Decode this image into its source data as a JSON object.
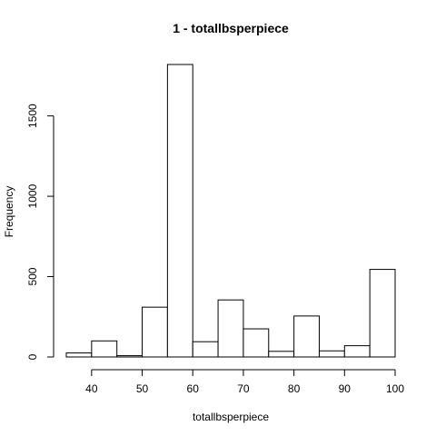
{
  "chart_data": {
    "type": "bar",
    "title": "1 - totallbsperpiece",
    "xlabel": "totallbsperpiece",
    "ylabel": "Frequency",
    "bins": [
      {
        "from": 35,
        "to": 40,
        "count": 25
      },
      {
        "from": 40,
        "to": 45,
        "count": 100
      },
      {
        "from": 45,
        "to": 50,
        "count": 8
      },
      {
        "from": 50,
        "to": 55,
        "count": 310
      },
      {
        "from": 55,
        "to": 60,
        "count": 1820
      },
      {
        "from": 60,
        "to": 65,
        "count": 95
      },
      {
        "from": 65,
        "to": 70,
        "count": 355
      },
      {
        "from": 70,
        "to": 75,
        "count": 175
      },
      {
        "from": 75,
        "to": 80,
        "count": 35
      },
      {
        "from": 80,
        "to": 85,
        "count": 255
      },
      {
        "from": 85,
        "to": 90,
        "count": 38
      },
      {
        "from": 90,
        "to": 95,
        "count": 70
      },
      {
        "from": 95,
        "to": 100,
        "count": 545
      }
    ],
    "xlim": [
      35,
      100
    ],
    "ylim": [
      0,
      1820
    ],
    "x_ticks": [
      40,
      50,
      60,
      70,
      80,
      90,
      100
    ],
    "y_ticks": [
      0,
      500,
      1000,
      1500
    ],
    "grid": false,
    "legend": "none"
  }
}
